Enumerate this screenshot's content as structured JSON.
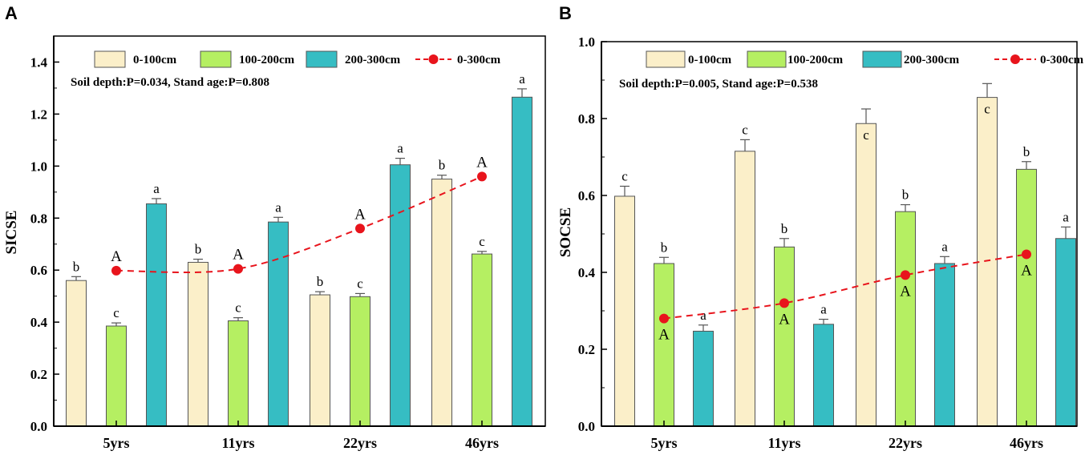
{
  "colors": {
    "s0_100": "#FBEFC9",
    "s100_200": "#B5EF62",
    "s200_300": "#36BDC3",
    "trend": "#E8141C",
    "bar_edge": "#555555"
  },
  "chart_data": [
    {
      "panel": "A",
      "type": "bar",
      "ylabel": "SICSE",
      "ylim": [
        0,
        1.5
      ],
      "yticks": [
        "0.0",
        "0.2",
        "0.4",
        "0.6",
        "0.8",
        "1.0",
        "1.2",
        "1.4"
      ],
      "categories": [
        "5yrs",
        "11yrs",
        "22yrs",
        "46yrs"
      ],
      "stats_text": "Soil depth:P=0.034, Stand age:P=0.808",
      "series": [
        {
          "name": "0-100cm",
          "values": [
            0.56,
            0.63,
            0.505,
            0.95
          ],
          "errors": [
            0.015,
            0.012,
            0.012,
            0.015
          ],
          "letters": [
            "b",
            "b",
            "b",
            "b"
          ]
        },
        {
          "name": "100-200cm",
          "values": [
            0.385,
            0.405,
            0.498,
            0.662
          ],
          "errors": [
            0.012,
            0.012,
            0.012,
            0.01
          ],
          "letters": [
            "c",
            "c",
            "c",
            "c"
          ]
        },
        {
          "name": "200-300cm",
          "values": [
            0.855,
            0.785,
            1.005,
            1.265
          ],
          "errors": [
            0.02,
            0.018,
            0.025,
            0.032
          ],
          "letters": [
            "a",
            "a",
            "a",
            "a"
          ]
        }
      ],
      "trend": {
        "name": "0-300cm",
        "values": [
          0.598,
          0.605,
          0.76,
          0.96
        ],
        "letters": [
          "A",
          "A",
          "A",
          "A"
        ],
        "label_position": "above"
      }
    },
    {
      "panel": "B",
      "type": "bar",
      "ylabel": "SOCSE",
      "ylim": [
        0,
        1.0
      ],
      "yticks": [
        "0.0",
        "0.2",
        "0.4",
        "0.6",
        "0.8",
        "1.0"
      ],
      "categories": [
        "5yrs",
        "11yrs",
        "22yrs",
        "46yrs"
      ],
      "stats_text": "Soil depth:P=0.005, Stand age:P=0.538",
      "series": [
        {
          "name": "0-100cm",
          "values": [
            0.598,
            0.715,
            0.787,
            0.855
          ],
          "errors": [
            0.026,
            0.03,
            0.038,
            0.036
          ],
          "letters": [
            "c",
            "c",
            "c",
            "c"
          ],
          "letter_inside": [
            false,
            false,
            true,
            true
          ]
        },
        {
          "name": "100-200cm",
          "values": [
            0.423,
            0.466,
            0.558,
            0.668
          ],
          "errors": [
            0.016,
            0.022,
            0.018,
            0.02
          ],
          "letters": [
            "b",
            "b",
            "b",
            "b"
          ],
          "letter_inside": [
            false,
            false,
            false,
            false
          ]
        },
        {
          "name": "200-300cm",
          "values": [
            0.247,
            0.265,
            0.423,
            0.488
          ],
          "errors": [
            0.016,
            0.013,
            0.018,
            0.03
          ],
          "letters": [
            "a",
            "a",
            "a",
            "a"
          ],
          "letter_inside": [
            false,
            false,
            false,
            false
          ]
        }
      ],
      "trend": {
        "name": "0-300cm",
        "values": [
          0.28,
          0.32,
          0.393,
          0.447
        ],
        "letters": [
          "A",
          "A",
          "A",
          "A"
        ],
        "label_position": "below"
      }
    }
  ]
}
